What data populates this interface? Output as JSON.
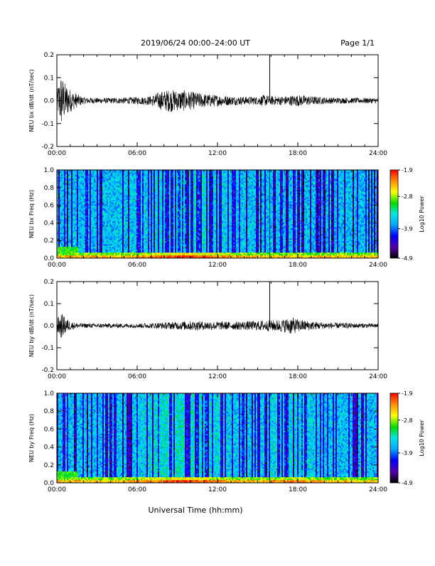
{
  "header": {
    "title": "2019/06/24  00:00–24:00 UT",
    "page": "Page 1/1"
  },
  "footer": {
    "xlabel": "Universal Time (hh:mm)"
  },
  "colors": {
    "colormap": [
      "#000000",
      "#5500aa",
      "#0000ff",
      "#00aaff",
      "#00e5e5",
      "#00dd00",
      "#ffff00",
      "#ff8800",
      "#ff0000"
    ],
    "background": "#ffffff",
    "trace": "#000000"
  },
  "chart_data": [
    {
      "type": "line",
      "ylabel": "NEU bx dB/dt (nT/sec)",
      "xlim": [
        "00:00",
        "24:00"
      ],
      "xticks": [
        "00:00",
        "06:00",
        "12:00",
        "18:00",
        "24:00"
      ],
      "ylim": [
        -0.2,
        0.2
      ],
      "yticks": [
        "-0.2",
        "-0.1",
        "0.0",
        "0.1",
        "0.2"
      ],
      "envelope": {
        "x": [
          0,
          0.3,
          0.6,
          1,
          1.5,
          2,
          3,
          4,
          5,
          6,
          7,
          7.5,
          8,
          8.5,
          9,
          9.5,
          10,
          10.5,
          11,
          12,
          13,
          14,
          15,
          15.5,
          16,
          17,
          18,
          19,
          20,
          21,
          22,
          23,
          24
        ],
        "amp": [
          0.04,
          0.12,
          0.08,
          0.05,
          0.03,
          0.015,
          0.012,
          0.012,
          0.014,
          0.016,
          0.02,
          0.035,
          0.045,
          0.05,
          0.045,
          0.045,
          0.04,
          0.035,
          0.03,
          0.025,
          0.02,
          0.018,
          0.018,
          0.025,
          0.02,
          0.02,
          0.025,
          0.02,
          0.015,
          0.013,
          0.012,
          0.012,
          0.012
        ]
      },
      "spike": {
        "x": 15.9,
        "y": 0.2
      }
    },
    {
      "type": "heatmap",
      "ylabel": "NEU bx Freq (Hz)",
      "xlim": [
        "00:00",
        "24:00"
      ],
      "xticks": [
        "00:00",
        "06:00",
        "12:00",
        "18:00",
        "24:00"
      ],
      "ylim": [
        0.0,
        1.0
      ],
      "yticks": [
        "0.0",
        "0.2",
        "0.4",
        "0.6",
        "0.8",
        "1.0"
      ],
      "colorbar": {
        "label": "Log10 Power",
        "ticks": [
          "-1.9",
          "-2.8",
          "-3.9",
          "-4.9"
        ],
        "range": [
          -4.9,
          -1.9
        ]
      }
    },
    {
      "type": "line",
      "ylabel": "NEU by dB/dt (nT/sec)",
      "xlim": [
        "00:00",
        "24:00"
      ],
      "xticks": [
        "00:00",
        "06:00",
        "12:00",
        "18:00",
        "24:00"
      ],
      "ylim": [
        -0.2,
        0.2
      ],
      "yticks": [
        "-0.2",
        "-0.1",
        "0.0",
        "0.1",
        "0.2"
      ],
      "envelope": {
        "x": [
          0,
          0.3,
          0.6,
          1,
          1.5,
          2,
          3,
          4,
          5,
          6,
          7,
          8,
          9,
          10,
          11,
          12,
          13,
          14,
          15,
          15.5,
          16,
          17,
          17.5,
          18,
          19,
          20,
          21,
          22,
          23,
          24
        ],
        "amp": [
          0.03,
          0.06,
          0.04,
          0.02,
          0.012,
          0.01,
          0.01,
          0.01,
          0.01,
          0.01,
          0.012,
          0.015,
          0.018,
          0.022,
          0.02,
          0.02,
          0.018,
          0.02,
          0.022,
          0.025,
          0.025,
          0.03,
          0.04,
          0.03,
          0.02,
          0.015,
          0.013,
          0.012,
          0.01,
          0.01
        ]
      },
      "spike": {
        "x": 15.9,
        "y": 0.2
      }
    },
    {
      "type": "heatmap",
      "ylabel": "NEU by Freq (Hz)",
      "xlim": [
        "00:00",
        "24:00"
      ],
      "xticks": [
        "00:00",
        "06:00",
        "12:00",
        "18:00",
        "24:00"
      ],
      "ylim": [
        0.0,
        1.0
      ],
      "yticks": [
        "0.0",
        "0.2",
        "0.4",
        "0.6",
        "0.8",
        "1.0"
      ],
      "colorbar": {
        "label": "Log10 Power",
        "ticks": [
          "-1.9",
          "-2.8",
          "-3.9",
          "-4.9"
        ],
        "range": [
          -4.9,
          -1.9
        ]
      }
    }
  ]
}
